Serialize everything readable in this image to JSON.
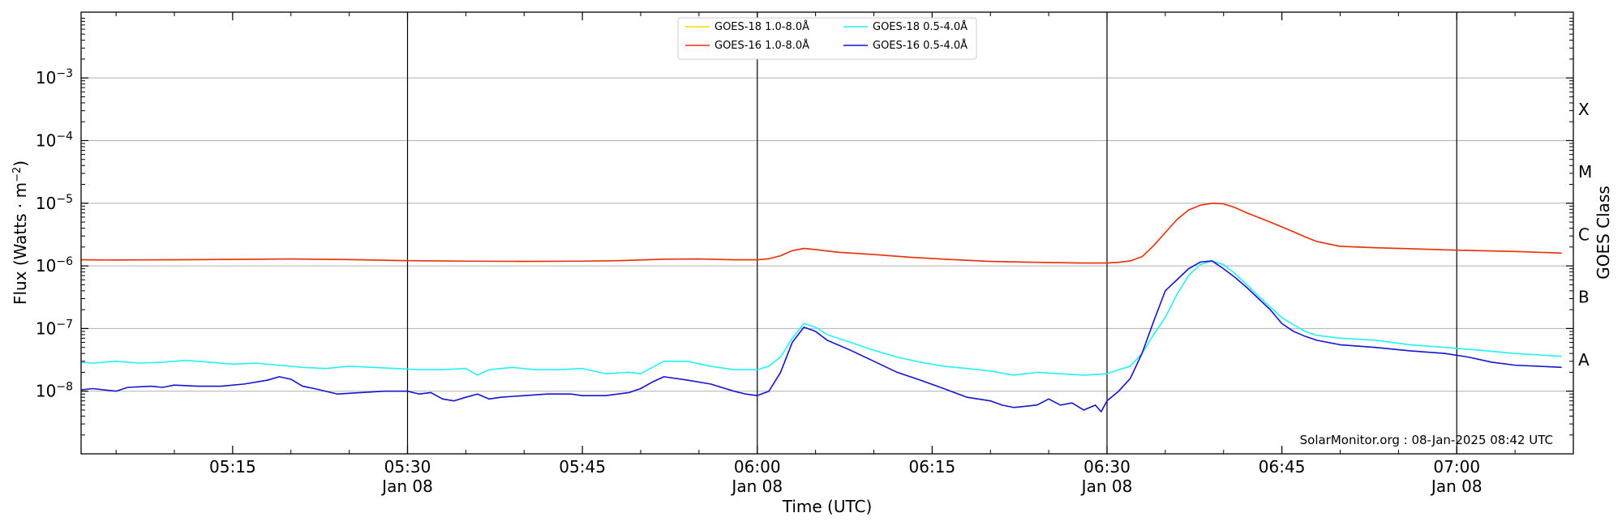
{
  "chart_data": {
    "type": "line",
    "xlabel": "Time (UTC)",
    "ylabel_main": "Flux (Watts · m",
    "ylabel_exp": "−2",
    "ylabel_close": ")",
    "right_axis_label": "GOES Class",
    "credit": "SolarMonitor.org : 08-Jan-2025 08:42 UTC",
    "x_unit": "minutes after 05:00 UTC, 08-Jan-2025",
    "xlim": [
      2,
      130
    ],
    "ylim_log10": [
      -9.0,
      -1.95
    ],
    "y_scale": "log",
    "grid": "horizontal gridlines at each decade",
    "x_ticks": [
      {
        "x": 15,
        "label": "05:15",
        "sub": ""
      },
      {
        "x": 30,
        "label": "05:30",
        "sub": "Jan 08"
      },
      {
        "x": 45,
        "label": "05:45",
        "sub": ""
      },
      {
        "x": 60,
        "label": "06:00",
        "sub": "Jan 08"
      },
      {
        "x": 75,
        "label": "06:15",
        "sub": ""
      },
      {
        "x": 90,
        "label": "06:30",
        "sub": "Jan 08"
      },
      {
        "x": 105,
        "label": "06:45",
        "sub": ""
      },
      {
        "x": 120,
        "label": "07:00",
        "sub": "Jan 08"
      }
    ],
    "vertical_lines_x": [
      30,
      60,
      90,
      120
    ],
    "y_ticks": [
      {
        "exp": -8,
        "base": "10",
        "sup": "−8"
      },
      {
        "exp": -7,
        "base": "10",
        "sup": "−7"
      },
      {
        "exp": -6,
        "base": "10",
        "sup": "−6"
      },
      {
        "exp": -5,
        "base": "10",
        "sup": "−5"
      },
      {
        "exp": -4,
        "base": "10",
        "sup": "−4"
      },
      {
        "exp": -3,
        "base": "10",
        "sup": "−3"
      }
    ],
    "goes_classes": [
      {
        "label": "A",
        "exp": -7.5
      },
      {
        "label": "B",
        "exp": -6.5
      },
      {
        "label": "C",
        "exp": -5.5
      },
      {
        "label": "M",
        "exp": -4.5
      },
      {
        "label": "X",
        "exp": -3.5
      }
    ],
    "legend_position": "top-center",
    "legend": [
      {
        "label": "GOES-18 1.0-8.0Å",
        "color": "#ffd700"
      },
      {
        "label": "GOES-16 1.0-8.0Å",
        "color": "#e8311a"
      },
      {
        "label": "GOES-18 0.5-4.0Å",
        "color": "#22f2f2"
      },
      {
        "label": "GOES-16 0.5-4.0Å",
        "color": "#1414d2"
      }
    ],
    "series": [
      {
        "name": "GOES-18 1.0-8.0Å",
        "color": "#ffd700",
        "points": [
          [
            2,
            1.25e-06
          ],
          [
            5,
            1.24e-06
          ],
          [
            10,
            1.25e-06
          ],
          [
            15,
            1.27e-06
          ],
          [
            20,
            1.29e-06
          ],
          [
            25,
            1.26e-06
          ],
          [
            30,
            1.21e-06
          ],
          [
            35,
            1.19e-06
          ],
          [
            40,
            1.18e-06
          ],
          [
            45,
            1.19e-06
          ],
          [
            48,
            1.21e-06
          ],
          [
            50,
            1.24e-06
          ],
          [
            52,
            1.28e-06
          ],
          [
            55,
            1.29e-06
          ],
          [
            58,
            1.25e-06
          ],
          [
            60,
            1.25e-06
          ],
          [
            61,
            1.3e-06
          ],
          [
            62,
            1.45e-06
          ],
          [
            63,
            1.75e-06
          ],
          [
            64,
            1.9e-06
          ],
          [
            65,
            1.82e-06
          ],
          [
            67,
            1.65e-06
          ],
          [
            70,
            1.52e-06
          ],
          [
            73,
            1.38e-06
          ],
          [
            76,
            1.28e-06
          ],
          [
            80,
            1.18e-06
          ],
          [
            85,
            1.13e-06
          ],
          [
            88,
            1.11e-06
          ],
          [
            90,
            1.11e-06
          ],
          [
            91,
            1.14e-06
          ],
          [
            92,
            1.2e-06
          ],
          [
            93,
            1.4e-06
          ],
          [
            94,
            2.1e-06
          ],
          [
            95,
            3.4e-06
          ],
          [
            96,
            5.5e-06
          ],
          [
            97,
            7.8e-06
          ],
          [
            98,
            9.3e-06
          ],
          [
            99,
            1e-05
          ],
          [
            100,
            9.8e-06
          ],
          [
            101,
            8.5e-06
          ],
          [
            102,
            7e-06
          ],
          [
            104,
            5e-06
          ],
          [
            106,
            3.5e-06
          ],
          [
            107,
            2.9e-06
          ],
          [
            108,
            2.45e-06
          ],
          [
            110,
            2.05e-06
          ],
          [
            113,
            1.95e-06
          ],
          [
            116,
            1.88e-06
          ],
          [
            120,
            1.78e-06
          ],
          [
            125,
            1.7e-06
          ],
          [
            129,
            1.6e-06
          ]
        ]
      },
      {
        "name": "GOES-16 1.0-8.0Å",
        "color": "#e8311a",
        "points": [
          [
            2,
            1.25e-06
          ],
          [
            5,
            1.24e-06
          ],
          [
            10,
            1.25e-06
          ],
          [
            15,
            1.27e-06
          ],
          [
            20,
            1.29e-06
          ],
          [
            25,
            1.26e-06
          ],
          [
            30,
            1.21e-06
          ],
          [
            35,
            1.19e-06
          ],
          [
            40,
            1.18e-06
          ],
          [
            45,
            1.19e-06
          ],
          [
            48,
            1.21e-06
          ],
          [
            50,
            1.24e-06
          ],
          [
            52,
            1.28e-06
          ],
          [
            55,
            1.29e-06
          ],
          [
            58,
            1.25e-06
          ],
          [
            60,
            1.25e-06
          ],
          [
            61,
            1.3e-06
          ],
          [
            62,
            1.45e-06
          ],
          [
            63,
            1.75e-06
          ],
          [
            64,
            1.9e-06
          ],
          [
            65,
            1.82e-06
          ],
          [
            67,
            1.65e-06
          ],
          [
            70,
            1.52e-06
          ],
          [
            73,
            1.38e-06
          ],
          [
            76,
            1.28e-06
          ],
          [
            80,
            1.18e-06
          ],
          [
            85,
            1.13e-06
          ],
          [
            88,
            1.11e-06
          ],
          [
            90,
            1.11e-06
          ],
          [
            91,
            1.14e-06
          ],
          [
            92,
            1.2e-06
          ],
          [
            93,
            1.4e-06
          ],
          [
            94,
            2.1e-06
          ],
          [
            95,
            3.4e-06
          ],
          [
            96,
            5.5e-06
          ],
          [
            97,
            7.8e-06
          ],
          [
            98,
            9.3e-06
          ],
          [
            99,
            1e-05
          ],
          [
            100,
            9.8e-06
          ],
          [
            101,
            8.5e-06
          ],
          [
            102,
            7e-06
          ],
          [
            104,
            5e-06
          ],
          [
            106,
            3.5e-06
          ],
          [
            107,
            2.9e-06
          ],
          [
            108,
            2.45e-06
          ],
          [
            110,
            2.05e-06
          ],
          [
            113,
            1.95e-06
          ],
          [
            116,
            1.88e-06
          ],
          [
            120,
            1.78e-06
          ],
          [
            125,
            1.7e-06
          ],
          [
            129,
            1.6e-06
          ]
        ]
      },
      {
        "name": "GOES-18 0.5-4.0Å",
        "color": "#22f2f2",
        "points": [
          [
            2,
            2.9e-08
          ],
          [
            3,
            2.8e-08
          ],
          [
            5,
            3e-08
          ],
          [
            7,
            2.8e-08
          ],
          [
            9,
            2.9e-08
          ],
          [
            11,
            3.1e-08
          ],
          [
            13,
            2.9e-08
          ],
          [
            15,
            2.7e-08
          ],
          [
            17,
            2.8e-08
          ],
          [
            19,
            2.6e-08
          ],
          [
            21,
            2.4e-08
          ],
          [
            23,
            2.3e-08
          ],
          [
            25,
            2.5e-08
          ],
          [
            27,
            2.4e-08
          ],
          [
            29,
            2.3e-08
          ],
          [
            31,
            2.2e-08
          ],
          [
            33,
            2.2e-08
          ],
          [
            35,
            2.3e-08
          ],
          [
            36,
            1.8e-08
          ],
          [
            37,
            2.2e-08
          ],
          [
            39,
            2.4e-08
          ],
          [
            41,
            2.2e-08
          ],
          [
            43,
            2.2e-08
          ],
          [
            45,
            2.3e-08
          ],
          [
            47,
            1.9e-08
          ],
          [
            49,
            2e-08
          ],
          [
            50,
            1.9e-08
          ],
          [
            51,
            2.4e-08
          ],
          [
            52,
            3e-08
          ],
          [
            54,
            3e-08
          ],
          [
            56,
            2.5e-08
          ],
          [
            58,
            2.2e-08
          ],
          [
            60,
            2.2e-08
          ],
          [
            61,
            2.5e-08
          ],
          [
            62,
            3.5e-08
          ],
          [
            63,
            7e-08
          ],
          [
            64,
            1.2e-07
          ],
          [
            65,
            1.05e-07
          ],
          [
            66,
            8e-08
          ],
          [
            68,
            6e-08
          ],
          [
            70,
            4.5e-08
          ],
          [
            72,
            3.5e-08
          ],
          [
            74,
            2.9e-08
          ],
          [
            76,
            2.5e-08
          ],
          [
            78,
            2.3e-08
          ],
          [
            80,
            2.1e-08
          ],
          [
            82,
            1.8e-08
          ],
          [
            84,
            2e-08
          ],
          [
            86,
            1.9e-08
          ],
          [
            88,
            1.8e-08
          ],
          [
            90,
            1.9e-08
          ],
          [
            91,
            2.2e-08
          ],
          [
            92,
            2.5e-08
          ],
          [
            93,
            4e-08
          ],
          [
            94,
            8e-08
          ],
          [
            95,
            1.5e-07
          ],
          [
            96,
            3.5e-07
          ],
          [
            97,
            7e-07
          ],
          [
            98,
            1.05e-06
          ],
          [
            99,
            1.2e-06
          ],
          [
            100,
            1.05e-06
          ],
          [
            101,
            7.5e-07
          ],
          [
            102,
            5e-07
          ],
          [
            103,
            3.3e-07
          ],
          [
            104,
            2.2e-07
          ],
          [
            105,
            1.5e-07
          ],
          [
            106,
            1.15e-07
          ],
          [
            107,
            9e-08
          ],
          [
            108,
            7.8e-08
          ],
          [
            110,
            7e-08
          ],
          [
            113,
            6.5e-08
          ],
          [
            116,
            5.5e-08
          ],
          [
            119,
            5e-08
          ],
          [
            122,
            4.5e-08
          ],
          [
            125,
            4e-08
          ],
          [
            129,
            3.6e-08
          ]
        ]
      },
      {
        "name": "GOES-16 0.5-4.0Å",
        "color": "#1414d2",
        "points": [
          [
            2,
            1.05e-08
          ],
          [
            3,
            1.1e-08
          ],
          [
            5,
            1e-08
          ],
          [
            6,
            1.15e-08
          ],
          [
            8,
            1.2e-08
          ],
          [
            9,
            1.15e-08
          ],
          [
            10,
            1.25e-08
          ],
          [
            12,
            1.2e-08
          ],
          [
            14,
            1.2e-08
          ],
          [
            16,
            1.3e-08
          ],
          [
            18,
            1.5e-08
          ],
          [
            19,
            1.7e-08
          ],
          [
            20,
            1.55e-08
          ],
          [
            21,
            1.2e-08
          ],
          [
            22,
            1.1e-08
          ],
          [
            24,
            9e-09
          ],
          [
            26,
            9.5e-09
          ],
          [
            28,
            1e-08
          ],
          [
            30,
            1e-08
          ],
          [
            31,
            9e-09
          ],
          [
            32,
            9.5e-09
          ],
          [
            33,
            7.5e-09
          ],
          [
            34,
            7e-09
          ],
          [
            35,
            8e-09
          ],
          [
            36,
            9e-09
          ],
          [
            37,
            7.5e-09
          ],
          [
            38,
            8e-09
          ],
          [
            40,
            8.5e-09
          ],
          [
            42,
            9e-09
          ],
          [
            44,
            9e-09
          ],
          [
            45,
            8.5e-09
          ],
          [
            47,
            8.5e-09
          ],
          [
            49,
            9.5e-09
          ],
          [
            50,
            1.1e-08
          ],
          [
            51,
            1.4e-08
          ],
          [
            52,
            1.7e-08
          ],
          [
            54,
            1.5e-08
          ],
          [
            56,
            1.3e-08
          ],
          [
            58,
            1e-08
          ],
          [
            59,
            9e-09
          ],
          [
            60,
            8.5e-09
          ],
          [
            61,
            1e-08
          ],
          [
            62,
            2e-08
          ],
          [
            63,
            6e-08
          ],
          [
            64,
            1.05e-07
          ],
          [
            65,
            9e-08
          ],
          [
            66,
            6.5e-08
          ],
          [
            68,
            4.5e-08
          ],
          [
            70,
            3e-08
          ],
          [
            72,
            2e-08
          ],
          [
            74,
            1.5e-08
          ],
          [
            76,
            1.1e-08
          ],
          [
            78,
            8e-09
          ],
          [
            80,
            7e-09
          ],
          [
            81,
            6e-09
          ],
          [
            82,
            5.5e-09
          ],
          [
            84,
            6e-09
          ],
          [
            85,
            7.5e-09
          ],
          [
            86,
            6e-09
          ],
          [
            87,
            6.5e-09
          ],
          [
            88,
            5e-09
          ],
          [
            89,
            6e-09
          ],
          [
            89.5,
            4.7e-09
          ],
          [
            90,
            7e-09
          ],
          [
            91,
            1e-08
          ],
          [
            92,
            1.6e-08
          ],
          [
            93,
            4e-08
          ],
          [
            94,
            1.3e-07
          ],
          [
            95,
            4e-07
          ],
          [
            96,
            6e-07
          ],
          [
            97,
            9e-07
          ],
          [
            98,
            1.15e-06
          ],
          [
            99,
            1.2e-06
          ],
          [
            100,
            9e-07
          ],
          [
            101,
            6.5e-07
          ],
          [
            102,
            4.5e-07
          ],
          [
            103,
            3e-07
          ],
          [
            104,
            2e-07
          ],
          [
            105,
            1.2e-07
          ],
          [
            106,
            9e-08
          ],
          [
            107,
            7.5e-08
          ],
          [
            108,
            6.5e-08
          ],
          [
            110,
            5.5e-08
          ],
          [
            113,
            5e-08
          ],
          [
            116,
            4.4e-08
          ],
          [
            119,
            4e-08
          ],
          [
            121,
            3.5e-08
          ],
          [
            123,
            2.9e-08
          ],
          [
            125,
            2.6e-08
          ],
          [
            127,
            2.5e-08
          ],
          [
            129,
            2.4e-08
          ]
        ]
      }
    ]
  }
}
